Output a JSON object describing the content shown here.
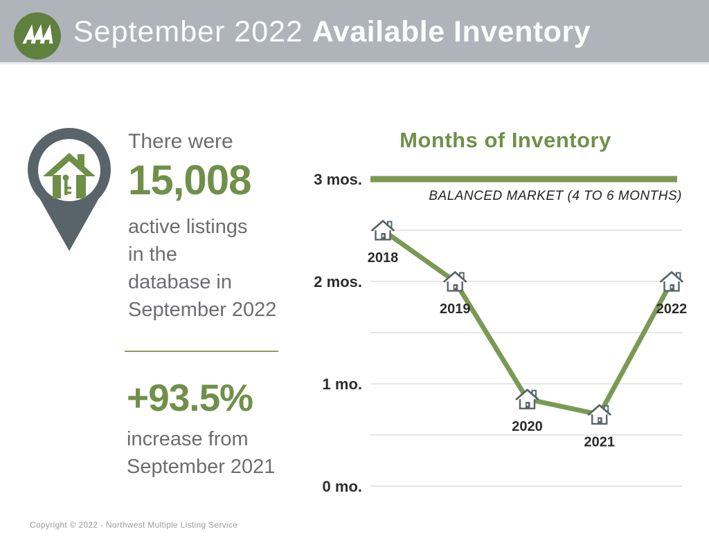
{
  "header": {
    "title_light": "September 2022 ",
    "title_bold": "Available Inventory",
    "logo": "nwmls-trees-logo"
  },
  "stats": {
    "intro": "There were",
    "count": "15,008",
    "description_lines": [
      "active listings",
      "in the",
      "database in",
      "September 2022"
    ],
    "change": "+93.5%",
    "change_lines": [
      "increase from",
      "September 2021"
    ]
  },
  "chart_data": {
    "type": "line",
    "title": "Months of Inventory",
    "categories": [
      "2018",
      "2019",
      "2020",
      "2021",
      "2022"
    ],
    "values": [
      2.5,
      2.0,
      0.85,
      0.7,
      2.0
    ],
    "unit": "months",
    "xlabel": "",
    "ylabel": "",
    "ylim": [
      0,
      3
    ],
    "yticks": [
      {
        "value": 3,
        "label": "3 mos."
      },
      {
        "value": 2,
        "label": "2 mos."
      },
      {
        "value": 1,
        "label": "1 mo."
      },
      {
        "value": 0,
        "label": "0 mo."
      }
    ],
    "gridline_values": [
      2.5,
      2.0,
      1.5,
      1.0,
      0.5,
      0.0
    ],
    "reference_line": {
      "value": 3.0,
      "label": "BALANCED MARKET (4 TO 6 MONTHS)"
    },
    "marker": "house-icon",
    "grid": true,
    "legend": "none",
    "line_color": "#7a9a54",
    "gridline_color": "#dedede",
    "marker_color": "#59636a"
  },
  "colors": {
    "header_bg": "#aeb4ba",
    "accent_green": "#70904a",
    "logo_green": "#60803e",
    "icon_gray": "#59636a",
    "text_gray": "#6c6d70"
  },
  "footer": {
    "copyright": "Copyright © 2022 - Northwest Multiple Listing Service"
  }
}
